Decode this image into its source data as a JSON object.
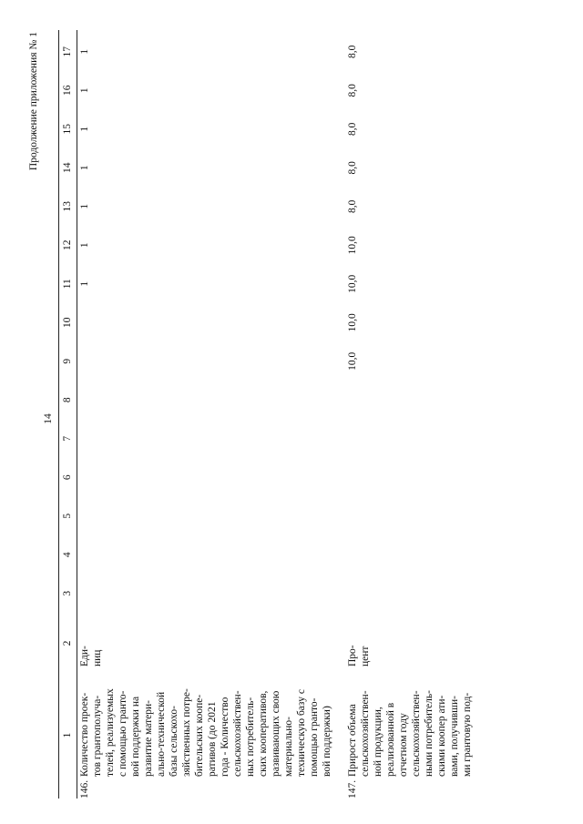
{
  "header": {
    "page_number": "14",
    "continuation": "Продолжение приложения № 1"
  },
  "table": {
    "column_numbers": [
      1,
      2,
      3,
      4,
      5,
      6,
      7,
      8,
      9,
      10,
      11,
      12,
      13,
      14,
      15,
      16,
      17
    ],
    "rows": [
      {
        "number": "146.",
        "name_lines": [
          "Количество проек-",
          "тов грантополуча-",
          "телей, реализуемых",
          "с помощью гранто-",
          "вой поддержки на",
          "развитие матери-",
          "ально-технической",
          "базы сельскохо-",
          "зяйственных потре-",
          "бительских коопе-",
          "ративов (до 2021",
          "года - Количество",
          "сельскохозяйствен-",
          "ных потребитель-",
          "ских кооперативов,",
          "развивающих свою",
          "материально-",
          "техническую базу с",
          "помощью гранто-",
          "вой поддержки)"
        ],
        "unit_lines": [
          "Еди-",
          "ниц"
        ],
        "values": [
          null,
          null,
          null,
          null,
          null,
          null,
          null,
          null,
          "1",
          "1",
          "1",
          "1",
          "1",
          "1",
          "1"
        ]
      },
      {
        "number": "147.",
        "name_lines": [
          "Прирост объема",
          "сельскохозяйствен-",
          "ной продукции,",
          "реализованной в",
          "отчетном году",
          "сельскохозяйствен-",
          "ными потребитель-",
          "скими коопер ати-",
          "вами, получивши-",
          "ми грантовую под-"
        ],
        "unit_lines": [
          "Про-",
          "цент"
        ],
        "values": [
          null,
          null,
          null,
          null,
          null,
          null,
          "10,0",
          "10,0",
          "10,0",
          "10,0",
          "8,0",
          "8,0",
          "8,0",
          "8,0",
          "8,0"
        ]
      }
    ]
  }
}
